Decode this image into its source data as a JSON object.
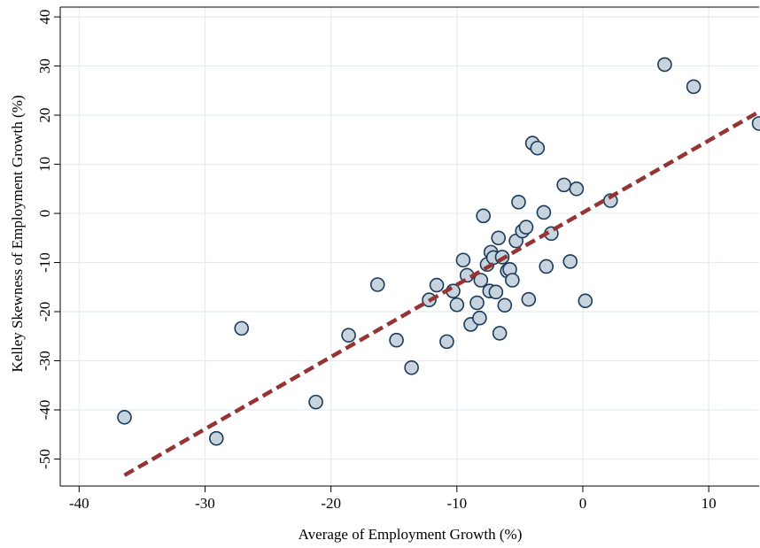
{
  "chart_data": {
    "type": "scatter",
    "title": "",
    "xlabel": "Average of Employment Growth (%)",
    "ylabel": "Kelley Skewness of Employment Growth (%)",
    "xlim": [
      -41.5,
      14
    ],
    "ylim": [
      -55.5,
      42
    ],
    "x_ticks": [
      -40,
      -30,
      -20,
      -10,
      0,
      10
    ],
    "y_ticks": [
      -50,
      -40,
      -30,
      -20,
      -10,
      0,
      10,
      20,
      30,
      40
    ],
    "x_tick_labels": [
      "-40",
      "-30",
      "-20",
      "-10",
      "0",
      "10"
    ],
    "y_tick_labels": [
      "-50",
      "-40",
      "-30",
      "-20",
      "-10",
      "0",
      "10",
      "20",
      "30",
      "40"
    ],
    "grid": true,
    "legend": "none",
    "colors": {
      "marker_fill": "#c7d3dd",
      "marker_stroke": "#1a3a5c",
      "fit_line": "#943434",
      "grid": "#e4ecf2"
    },
    "series": [
      {
        "type": "scatter",
        "points": [
          [
            -36.4,
            -41.5
          ],
          [
            -29.1,
            -45.8
          ],
          [
            -27.1,
            -23.4
          ],
          [
            -21.2,
            -38.4
          ],
          [
            -18.6,
            -24.8
          ],
          [
            -16.3,
            -14.5
          ],
          [
            -14.8,
            -25.8
          ],
          [
            -13.6,
            -31.4
          ],
          [
            -12.2,
            -17.6
          ],
          [
            -11.6,
            -14.6
          ],
          [
            -10.8,
            -26.1
          ],
          [
            -10.3,
            -15.8
          ],
          [
            -10.0,
            -18.6
          ],
          [
            -9.5,
            -9.5
          ],
          [
            -9.2,
            -12.6
          ],
          [
            -8.9,
            -22.6
          ],
          [
            -8.4,
            -18.2
          ],
          [
            -8.2,
            -21.3
          ],
          [
            -8.1,
            -13.6
          ],
          [
            -7.9,
            -0.5
          ],
          [
            -7.6,
            -10.4
          ],
          [
            -7.4,
            -15.8
          ],
          [
            -7.3,
            -7.9
          ],
          [
            -7.1,
            -9.0
          ],
          [
            -6.9,
            -16.0
          ],
          [
            -6.7,
            -5.0
          ],
          [
            -6.6,
            -24.4
          ],
          [
            -6.4,
            -8.9
          ],
          [
            -6.2,
            -18.7
          ],
          [
            -6.0,
            -11.7
          ],
          [
            -5.8,
            -11.4
          ],
          [
            -5.6,
            -13.6
          ],
          [
            -5.3,
            -5.6
          ],
          [
            -5.1,
            2.3
          ],
          [
            -4.8,
            -3.6
          ],
          [
            -4.5,
            -2.8
          ],
          [
            -4.3,
            -17.5
          ],
          [
            -4.0,
            14.3
          ],
          [
            -3.6,
            13.3
          ],
          [
            -3.1,
            0.2
          ],
          [
            -2.9,
            -10.8
          ],
          [
            -2.5,
            -4.1
          ],
          [
            -1.5,
            5.8
          ],
          [
            -1.0,
            -9.8
          ],
          [
            -0.5,
            5.0
          ],
          [
            0.2,
            -17.8
          ],
          [
            2.2,
            2.6
          ],
          [
            6.5,
            30.3
          ],
          [
            8.8,
            25.8
          ],
          [
            14.0,
            18.3
          ]
        ]
      },
      {
        "type": "fit-line",
        "style": "dashed",
        "points": [
          [
            -36.4,
            -53.3
          ],
          [
            14.0,
            20.7
          ]
        ]
      }
    ]
  }
}
